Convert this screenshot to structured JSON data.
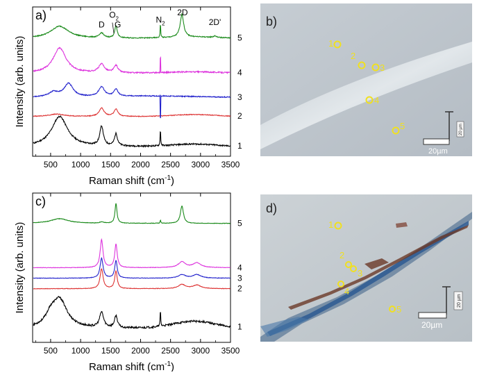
{
  "chart_data": [
    {
      "panel": "a",
      "type": "line",
      "title": "",
      "panel_label": "a)",
      "xlabel": "Raman shift (cm",
      "xlabel_sup": "-1",
      "xlabel_end": ")",
      "ylabel": "Intensity (arb. units)",
      "xlim": [
        200,
        3500
      ],
      "ylim": [
        0,
        6.2
      ],
      "x_ticks": [
        500,
        1000,
        1500,
        2000,
        2500,
        3000,
        3500
      ],
      "peak_labels": [
        {
          "text": "D",
          "x": 1350,
          "y": 5.35
        },
        {
          "text": "O",
          "sub": "2",
          "x": 1556,
          "y": 5.75
        },
        {
          "text": "G",
          "x": 1620,
          "y": 5.35
        },
        {
          "text": "N",
          "sub": "2",
          "x": 2331,
          "y": 5.55
        },
        {
          "text": "2D",
          "x": 2700,
          "y": 5.85
        },
        {
          "text": "2D'",
          "x": 3240,
          "y": 5.45
        }
      ],
      "series": [
        {
          "name": "1",
          "color": "#000000",
          "baseline": 0.4,
          "peaks": [
            [
              650,
              1.25,
              160
            ],
            [
              1350,
              0.8,
              35
            ],
            [
              1590,
              0.5,
              30
            ],
            [
              2331,
              0.7,
              6
            ]
          ],
          "bg": [
            [
              2900,
              0.1,
              500
            ]
          ],
          "noise": 0.03
        },
        {
          "name": "2",
          "color": "#dd3333",
          "baseline": 1.65,
          "peaks": [
            [
              1350,
              0.35,
              50
            ],
            [
              1590,
              0.3,
              40
            ],
            [
              600,
              0.1,
              150
            ]
          ],
          "bg": [
            [
              2900,
              0.08,
              500
            ]
          ],
          "noise": 0.015
        },
        {
          "name": "3",
          "color": "#2222cc",
          "baseline": 2.45,
          "peaks": [
            [
              800,
              0.55,
              90
            ],
            [
              1350,
              0.4,
              60
            ],
            [
              1590,
              0.3,
              40
            ],
            [
              550,
              0.2,
              100
            ]
          ],
          "bg": [
            [
              2200,
              0.05,
              900
            ]
          ],
          "noise": 0.02,
          "spike": [
            2331,
            -0.9
          ]
        },
        {
          "name": "4",
          "color": "#dd33dd",
          "baseline": 3.45,
          "peaks": [
            [
              650,
              1.05,
              130
            ],
            [
              1350,
              0.35,
              60
            ],
            [
              1590,
              0.3,
              40
            ]
          ],
          "bg": [
            [
              2900,
              0.05,
              600
            ]
          ],
          "noise": 0.025,
          "spike": [
            2331,
            0.6
          ]
        },
        {
          "name": "5",
          "color": "#1a8a1a",
          "baseline": 4.9,
          "peaks": [
            [
              650,
              0.5,
              180
            ],
            [
              1350,
              0.2,
              40
            ],
            [
              1590,
              0.5,
              25
            ],
            [
              2331,
              0.6,
              6
            ],
            [
              2690,
              0.95,
              35
            ],
            [
              3240,
              0.06,
              30
            ]
          ],
          "bg": [
            [
              2900,
              0.05,
              500
            ]
          ],
          "noise": 0.02
        }
      ],
      "series_labels": [
        "1",
        "2",
        "3",
        "4",
        "5"
      ]
    },
    {
      "panel": "c",
      "type": "line",
      "title": "",
      "panel_label": "c)",
      "xlabel": "Raman shift (cm",
      "xlabel_sup": "-1",
      "xlabel_end": ")",
      "ylabel": "Intensity (arb. units)",
      "xlim": [
        200,
        3500
      ],
      "ylim": [
        0,
        6.4
      ],
      "x_ticks": [
        500,
        1000,
        1500,
        2000,
        2500,
        3000,
        3500
      ],
      "series": [
        {
          "name": "1",
          "color": "#000000",
          "baseline": 0.6,
          "peaks": [
            [
              650,
              1.2,
              150
            ],
            [
              1350,
              0.65,
              40
            ],
            [
              1590,
              0.5,
              30
            ],
            [
              2331,
              0.7,
              6
            ],
            [
              500,
              0.4,
              100
            ]
          ],
          "bg": [
            [
              2900,
              0.3,
              500
            ]
          ],
          "noise": 0.04
        },
        {
          "name": "2",
          "color": "#dd3333",
          "baseline": 2.3,
          "peaks": [
            [
              1350,
              0.85,
              30
            ],
            [
              1590,
              0.75,
              25
            ],
            [
              2690,
              0.18,
              70
            ],
            [
              2940,
              0.15,
              80
            ]
          ],
          "bg": [],
          "noise": 0.01
        },
        {
          "name": "3",
          "color": "#2222cc",
          "baseline": 2.75,
          "peaks": [
            [
              1350,
              0.85,
              30
            ],
            [
              1590,
              0.75,
              25
            ],
            [
              2690,
              0.15,
              70
            ],
            [
              2940,
              0.15,
              80
            ]
          ],
          "bg": [],
          "noise": 0.01
        },
        {
          "name": "4",
          "color": "#dd33dd",
          "baseline": 3.2,
          "peaks": [
            [
              1350,
              1.2,
              28
            ],
            [
              1590,
              1.0,
              25
            ],
            [
              2690,
              0.25,
              70
            ],
            [
              2940,
              0.2,
              80
            ]
          ],
          "bg": [],
          "noise": 0.01
        },
        {
          "name": "5",
          "color": "#1a8a1a",
          "baseline": 5.1,
          "peaks": [
            [
              650,
              0.2,
              180
            ],
            [
              1590,
              0.85,
              20
            ],
            [
              2331,
              0.15,
              6
            ],
            [
              2690,
              0.75,
              30
            ],
            [
              1350,
              0.05,
              40
            ]
          ],
          "bg": [],
          "noise": 0.01
        }
      ],
      "series_labels": [
        "1",
        "2",
        "3",
        "4",
        "5"
      ]
    }
  ],
  "micrographs": [
    {
      "panel": "b",
      "panel_label": "b)",
      "points": [
        "1",
        "2",
        "3",
        "4",
        "5"
      ],
      "scale_bar_label": "20µm",
      "vertical_scale_label": "20 µm",
      "colors": {
        "bg_top": "#c4ccd2",
        "bg_bottom": "#b6bec6",
        "band": "#dfe5e8",
        "marker": "#f0e020"
      }
    },
    {
      "panel": "d",
      "panel_label": "d)",
      "points": [
        "1",
        "2",
        "3",
        "4",
        "5"
      ],
      "scale_bar_label": "20µm",
      "vertical_scale_label": "20 µm",
      "colors": {
        "bg_top": "#c9cfd3",
        "bg_bottom": "#b8c0c5",
        "flake_blue": "#2e5a8a",
        "flake_brown": "#6b3a28",
        "marker": "#f0e020"
      }
    }
  ]
}
